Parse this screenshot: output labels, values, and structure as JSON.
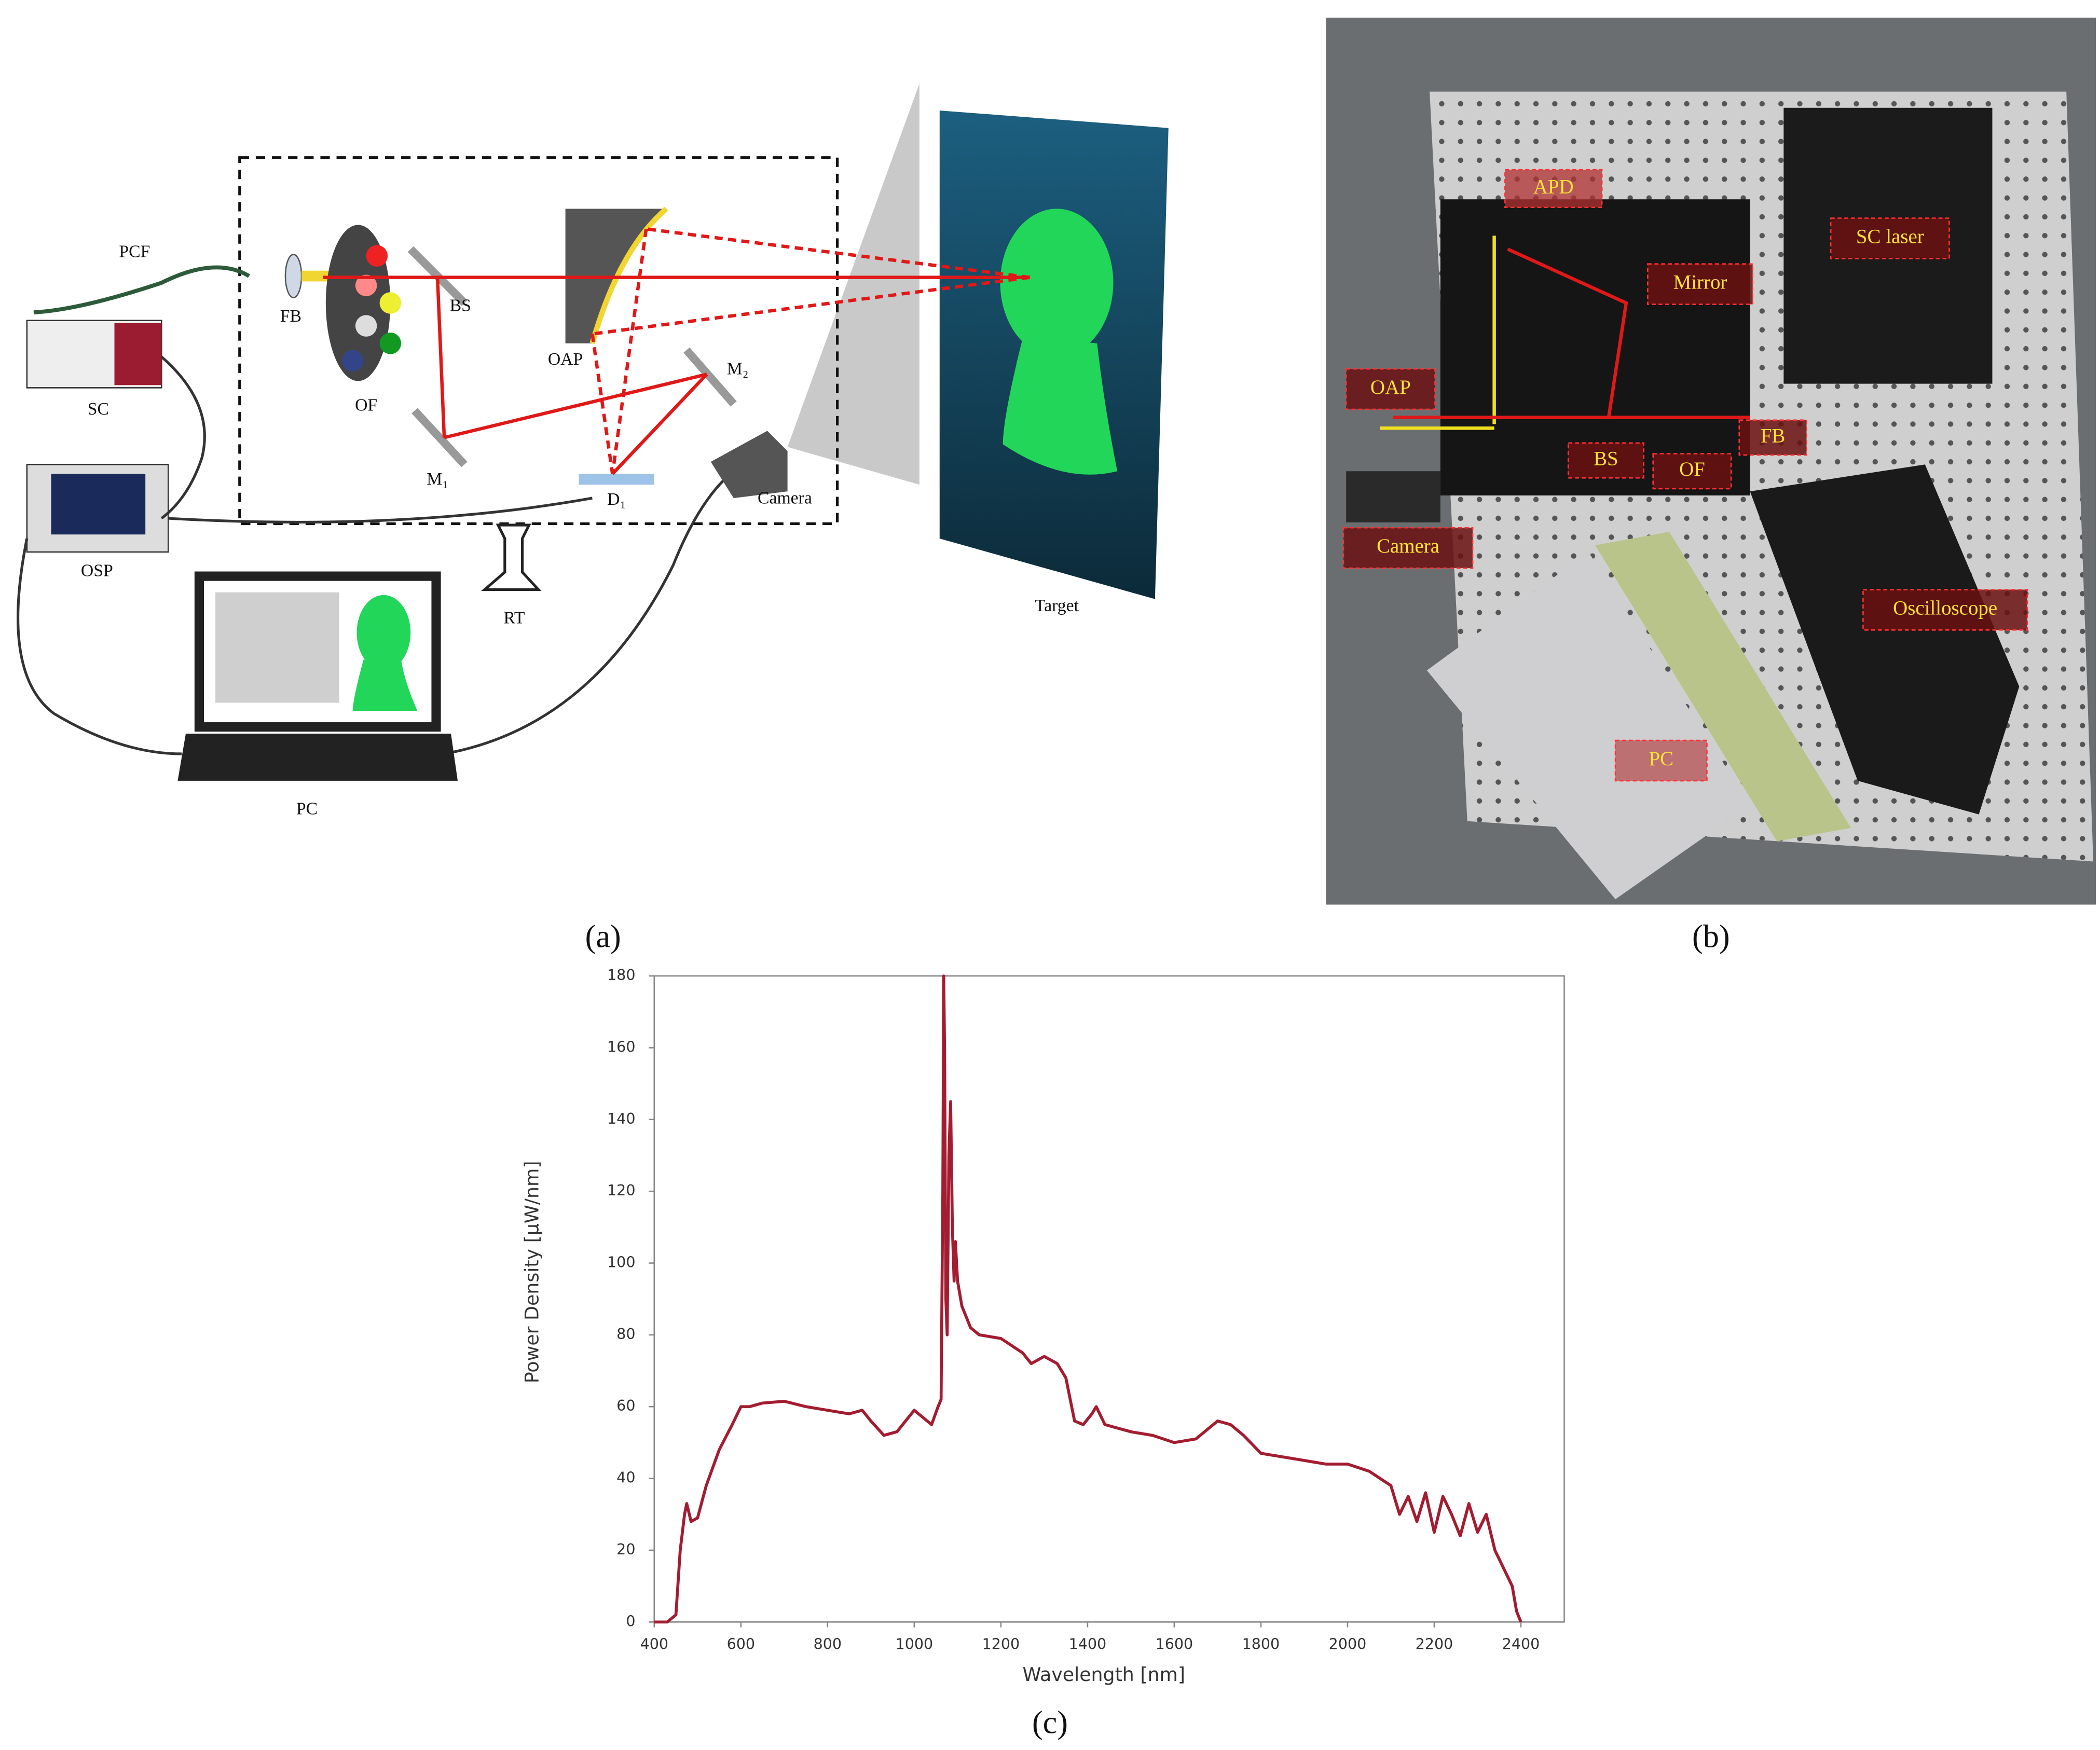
{
  "diagram": {
    "labels": {
      "pcf": "PCF",
      "sc": "SC",
      "osp": "OSP",
      "fb": "FB",
      "of": "OF",
      "bs": "BS",
      "oap": "OAP",
      "m1": "M₁",
      "m2": "M₂",
      "d1": "D₁",
      "camera": "Camera",
      "rt": "RT",
      "pc": "PC",
      "target": "Target"
    },
    "panel_label": "(a)"
  },
  "photo": {
    "labels": {
      "apd": "APD",
      "sc_laser": "SC laser",
      "mirror": "Mirror",
      "oap": "OAP",
      "fb": "FB",
      "bs": "BS",
      "of": "OF",
      "camera": "Camera",
      "oscilloscope": "Oscilloscope",
      "pc": "PC"
    },
    "panel_label": "(b)"
  },
  "chart_data": {
    "type": "line",
    "panel_label": "(c)",
    "x_label": "Wavelength [nm]",
    "y_label": "Power Density [μW/nm]",
    "color": "#a31c30",
    "x": [
      400,
      430,
      450,
      460,
      470,
      475,
      485,
      500,
      520,
      550,
      580,
      600,
      620,
      650,
      700,
      750,
      800,
      850,
      880,
      900,
      930,
      960,
      1000,
      1020,
      1040,
      1055,
      1062,
      1066,
      1068,
      1070,
      1073,
      1076,
      1080,
      1084,
      1088,
      1092,
      1095,
      1100,
      1110,
      1130,
      1150,
      1200,
      1250,
      1270,
      1300,
      1330,
      1350,
      1360,
      1370,
      1390,
      1410,
      1420,
      1440,
      1500,
      1550,
      1600,
      1650,
      1700,
      1730,
      1760,
      1800,
      1850,
      1900,
      1950,
      2000,
      2050,
      2100,
      2120,
      2140,
      2160,
      2180,
      2200,
      2220,
      2240,
      2260,
      2280,
      2300,
      2320,
      2340,
      2360,
      2380,
      2390,
      2400
    ],
    "values": [
      0,
      0,
      2,
      20,
      30,
      33,
      28,
      29,
      38,
      48,
      55,
      60,
      60,
      61,
      61.5,
      60,
      59,
      58,
      59,
      56,
      52,
      53,
      59,
      57,
      55,
      60,
      62,
      120,
      180,
      160,
      90,
      80,
      130,
      145,
      110,
      95,
      106,
      95,
      88,
      82,
      80,
      79,
      75,
      72,
      74,
      72,
      68,
      62,
      56,
      55,
      58,
      60,
      55,
      53,
      52,
      50,
      51,
      56,
      55,
      52,
      47,
      46,
      45,
      44,
      44,
      42,
      38,
      30,
      35,
      28,
      36,
      25,
      35,
      30,
      24,
      33,
      25,
      30,
      20,
      15,
      10,
      3,
      0
    ],
    "xlim": [
      400,
      2500
    ],
    "ylim": [
      0,
      180
    ],
    "xticks": [
      400,
      600,
      800,
      1000,
      1200,
      1400,
      1600,
      1800,
      2000,
      2200,
      2400
    ],
    "yticks": [
      0,
      20,
      40,
      60,
      80,
      100,
      120,
      140,
      160,
      180
    ]
  }
}
